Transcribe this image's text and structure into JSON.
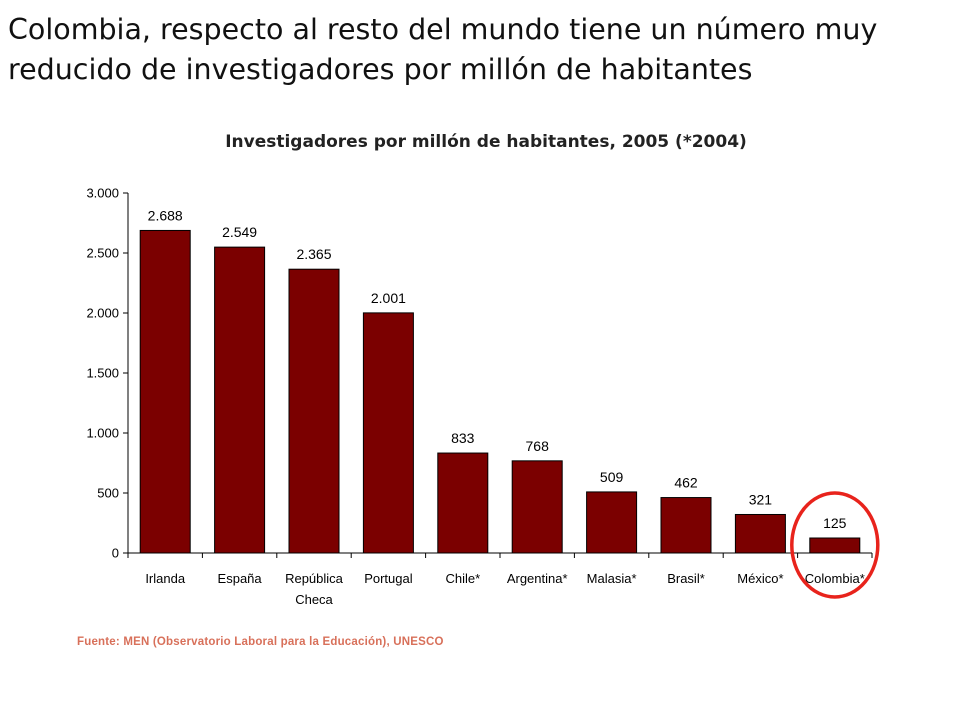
{
  "slide": {
    "title": "Colombia, respecto al resto del mundo tiene un número muy reducido de investigadores por millón de habitantes",
    "source": "Fuente: MEN (Observatorio  Laboral para la Educación), UNESCO"
  },
  "colors": {
    "bar": "#7b0000",
    "highlight_circle": "#e8231c",
    "source_text": "#d8705a"
  },
  "chart_data": {
    "type": "bar",
    "title": "Investigadores por millón de habitantes, 2005 (*2004)",
    "xlabel": "",
    "ylabel": "",
    "ylim": [
      0,
      3000
    ],
    "yticks": [
      0,
      500,
      1000,
      1500,
      2000,
      2500,
      3000
    ],
    "ytick_labels": [
      "0",
      "500",
      "1.000",
      "1.500",
      "2.000",
      "2.500",
      "3.000"
    ],
    "categories": [
      "Irlanda",
      "España",
      "República Checa",
      "Portugal",
      "Chile*",
      "Argentina*",
      "Malasia*",
      "Brasil*",
      "México*",
      "Colombia*"
    ],
    "category_lines": [
      [
        "Irlanda"
      ],
      [
        "España"
      ],
      [
        "República",
        "Checa"
      ],
      [
        "Portugal"
      ],
      [
        "Chile*"
      ],
      [
        "Argentina*"
      ],
      [
        "Malasia*"
      ],
      [
        "Brasil*"
      ],
      [
        "México*"
      ],
      [
        "Colombia*"
      ]
    ],
    "values": [
      2688,
      2549,
      2365,
      2001,
      833,
      768,
      509,
      462,
      321,
      125
    ],
    "value_labels": [
      "2.688",
      "2.549",
      "2.365",
      "2.001",
      "833",
      "768",
      "509",
      "462",
      "321",
      "125"
    ],
    "grid": false,
    "legend": "none",
    "highlight_category": "Colombia*"
  }
}
